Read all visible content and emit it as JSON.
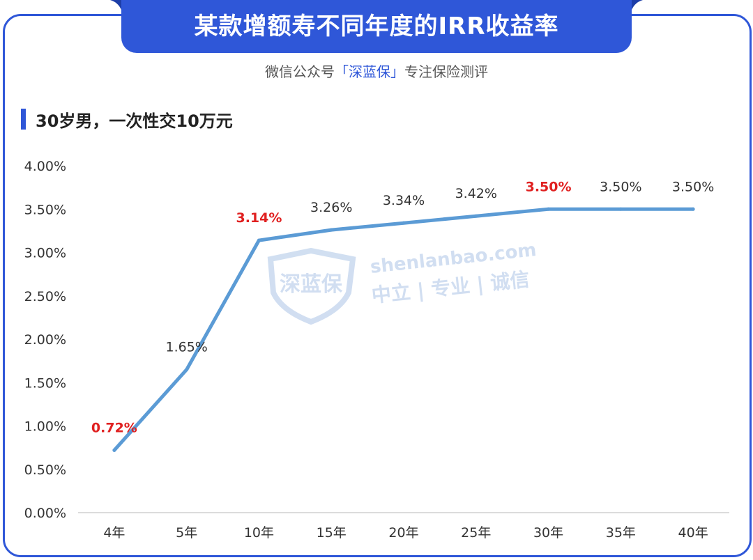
{
  "header": {
    "title": "某款增额寿不同年度的IRR收益率",
    "subtitle_prefix": "微信公众号",
    "subtitle_brand": "「深蓝保」",
    "subtitle_suffix": "专注保险测评"
  },
  "section_label": "30岁男，一次性交10万元",
  "watermark": {
    "logo_text": "深蓝保",
    "domain": "shenlanbao.com",
    "tagline": "中立 | 专业 | 诚信"
  },
  "colors": {
    "accent": "#2f57d8",
    "line": "#5b9bd5",
    "highlight_label": "#e02020"
  },
  "chart_data": {
    "type": "line",
    "title": "某款增额寿不同年度的IRR收益率",
    "xlabel": "",
    "ylabel": "",
    "categories": [
      "4年",
      "5年",
      "10年",
      "15年",
      "20年",
      "25年",
      "30年",
      "35年",
      "40年"
    ],
    "values": [
      0.72,
      1.65,
      3.14,
      3.26,
      3.34,
      3.42,
      3.5,
      3.5,
      3.5
    ],
    "data_labels": [
      "0.72%",
      "1.65%",
      "3.14%",
      "3.26%",
      "3.34%",
      "3.42%",
      "3.50%",
      "3.50%",
      "3.50%"
    ],
    "highlighted": [
      true,
      false,
      true,
      false,
      false,
      false,
      true,
      false,
      false
    ],
    "ylim": [
      0,
      4
    ],
    "y_ticks": [
      0,
      0.5,
      1,
      1.5,
      2,
      2.5,
      3,
      3.5,
      4
    ],
    "y_tick_labels": [
      "0.00%",
      "0.50%",
      "1.00%",
      "1.50%",
      "2.00%",
      "2.50%",
      "3.00%",
      "3.50%",
      "4.00%"
    ],
    "grid": false,
    "legend": "none"
  }
}
